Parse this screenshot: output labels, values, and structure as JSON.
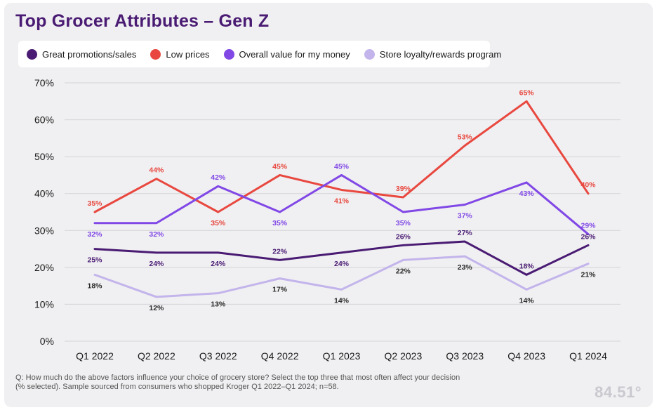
{
  "title": "Top Grocer Attributes – Gen Z",
  "footnote": "Q: How much do the above factors influence your choice of grocery store? Select the top three that most often affect your decision (% selected). Sample sourced from consumers who shopped Kroger Q1 2022–Q1 2024; n=58.",
  "logo": "84.51°",
  "colors": {
    "great_promotions": "#4a1b73",
    "low_prices": "#e8483f",
    "overall_value": "#8148e6",
    "store_loyalty": "#c3b4eb",
    "grid": "#d4d4d8",
    "axis_text": "#1a1a1a"
  },
  "legend": [
    {
      "label": "Great promotions/sales",
      "color": "#4a1b73"
    },
    {
      "label": "Low prices",
      "color": "#e8483f"
    },
    {
      "label": "Overall value for my money",
      "color": "#8148e6"
    },
    {
      "label": "Store loyalty/rewards program",
      "color": "#c3b4eb"
    }
  ],
  "chart_data": {
    "type": "line",
    "title": "Top Grocer Attributes – Gen Z",
    "xlabel": "",
    "ylabel": "",
    "categories": [
      "Q1 2022",
      "Q2 2022",
      "Q3 2022",
      "Q4 2022",
      "Q1 2023",
      "Q2 2023",
      "Q3 2023",
      "Q4 2023",
      "Q1 2024"
    ],
    "y_ticks": [
      "0%",
      "10%",
      "20%",
      "30%",
      "40%",
      "50%",
      "60%",
      "70%"
    ],
    "ylim": [
      0,
      70
    ],
    "grid": true,
    "legend_position": "top-left",
    "series": [
      {
        "name": "Great promotions/sales",
        "color": "#4a1b73",
        "values": [
          25,
          24,
          24,
          22,
          24,
          26,
          27,
          18,
          26
        ],
        "labels": [
          "25%",
          "24%",
          "24%",
          "22%",
          "24%",
          "26%",
          "27%",
          "18%",
          "26%"
        ],
        "label_pos": [
          "below",
          "below",
          "below",
          "above",
          "below",
          "above",
          "above",
          "above",
          "above"
        ]
      },
      {
        "name": "Low prices",
        "color": "#e8483f",
        "values": [
          35,
          44,
          35,
          45,
          41,
          39,
          53,
          65,
          40
        ],
        "labels": [
          "35%",
          "44%",
          "35%",
          "45%",
          "41%",
          "39%",
          "53%",
          "65%",
          "40%"
        ],
        "label_pos": [
          "above",
          "above",
          "below",
          "above",
          "below",
          "above",
          "above",
          "above",
          "above"
        ]
      },
      {
        "name": "Overall value for my money",
        "color": "#8148e6",
        "values": [
          32,
          32,
          42,
          35,
          45,
          35,
          37,
          43,
          29
        ],
        "labels": [
          "32%",
          "32%",
          "42%",
          "35%",
          "45%",
          "35%",
          "37%",
          "43%",
          "29%"
        ],
        "label_pos": [
          "below",
          "below",
          "above",
          "below",
          "above",
          "below",
          "below",
          "below",
          "above"
        ]
      },
      {
        "name": "Store loyalty/rewards program",
        "color": "#c3b4eb",
        "values": [
          18,
          12,
          13,
          17,
          14,
          22,
          23,
          14,
          21
        ],
        "labels": [
          "18%",
          "12%",
          "13%",
          "17%",
          "14%",
          "22%",
          "23%",
          "14%",
          "21%"
        ],
        "label_pos": [
          "below",
          "below",
          "below",
          "below",
          "below",
          "below",
          "below",
          "below",
          "below"
        ]
      }
    ]
  }
}
